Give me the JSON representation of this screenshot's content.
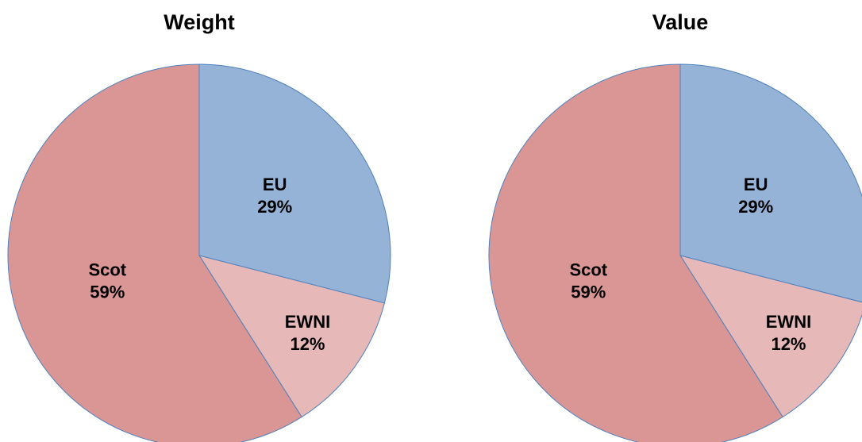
{
  "chart_data": [
    {
      "type": "pie",
      "title": "Weight",
      "categories": [
        "EU",
        "EWNI",
        "Scot"
      ],
      "values": [
        29,
        12,
        59
      ],
      "value_labels": [
        "29%",
        "12%",
        "59%"
      ],
      "colors": [
        "#95b3d7",
        "#e6b9b8",
        "#d99694"
      ]
    },
    {
      "type": "pie",
      "title": "Value",
      "categories": [
        "EU",
        "EWNI",
        "Scot"
      ],
      "values": [
        29,
        12,
        59
      ],
      "value_labels": [
        "29%",
        "12%",
        "59%"
      ],
      "colors": [
        "#95b3d7",
        "#e6b9b8",
        "#d99694"
      ]
    }
  ]
}
